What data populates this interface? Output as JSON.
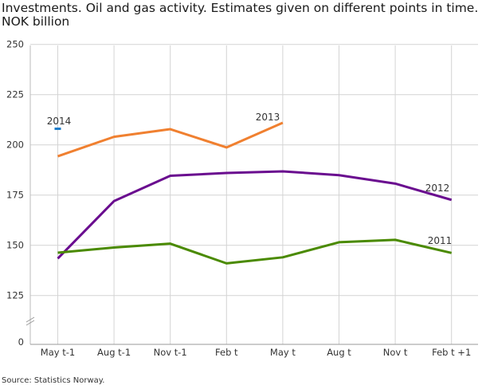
{
  "chart_data": {
    "type": "line",
    "title": "Investments. Oil and gas activity. Estimates given on different points in time.",
    "ylabel": "NOK billion",
    "categories": [
      "May t-1",
      "Aug t-1",
      "Nov t-1",
      "Feb t",
      "May t",
      "Aug t",
      "Nov t",
      "Feb t +1"
    ],
    "y_ticks": [
      "250",
      "225",
      "200",
      "175",
      "150",
      "125",
      "0"
    ],
    "ylim_displayed": [
      125,
      250
    ],
    "y_axis_break": true,
    "grid": true,
    "series": [
      {
        "name": "2014",
        "color": "#1a7bc9",
        "values": [
          208.0,
          null,
          null,
          null,
          null,
          null,
          null,
          null
        ]
      },
      {
        "name": "2013",
        "color": "#f08030",
        "values": [
          194.3,
          204.0,
          207.8,
          198.7,
          211.0,
          null,
          null,
          null
        ]
      },
      {
        "name": "2012",
        "color": "#6a0d8f",
        "values": [
          143.4,
          172.0,
          184.6,
          186.0,
          186.8,
          184.9,
          180.7,
          172.6
        ]
      },
      {
        "name": "2011",
        "color": "#4a8a00",
        "values": [
          146.3,
          148.9,
          150.8,
          141.0,
          144.0,
          151.5,
          152.7,
          146.2
        ]
      }
    ],
    "source": "Source: Statistics Norway."
  }
}
